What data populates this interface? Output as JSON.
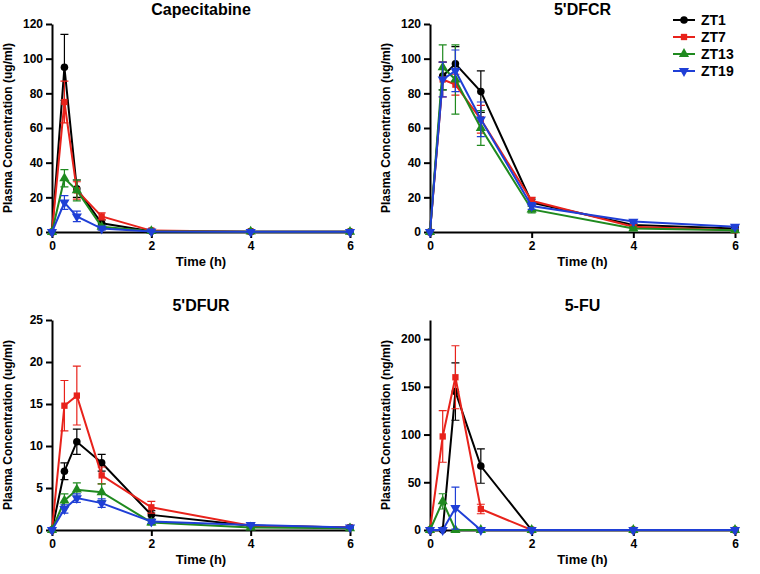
{
  "chart_data": [
    {
      "type": "line",
      "title": "Capecitabine",
      "x_label": "Time (h)",
      "y_label": "Plasma Concentration (ug/ml)",
      "x": [
        0,
        0.25,
        0.5,
        1,
        2,
        4,
        6
      ],
      "xlim": [
        0,
        6
      ],
      "xticks": [
        0,
        2,
        4,
        6
      ],
      "ylim": [
        0,
        120
      ],
      "yticks": [
        0,
        20,
        40,
        60,
        80,
        100,
        120
      ],
      "series": [
        {
          "name": "ZT1",
          "color": "#000000",
          "marker": "circle",
          "values": [
            0,
            95,
            25,
            5,
            0.5,
            0.2,
            0.1
          ],
          "errors": [
            0,
            19,
            5,
            2,
            0.3,
            0.1,
            0.1
          ]
        },
        {
          "name": "ZT7",
          "color": "#e8221b",
          "marker": "square",
          "values": [
            0,
            75,
            24,
            9,
            0.8,
            0.2,
            0.1
          ],
          "errors": [
            0,
            12,
            5,
            2,
            0.3,
            0.1,
            0.1
          ]
        },
        {
          "name": "ZT13",
          "color": "#1f8a1f",
          "marker": "triangle-up",
          "values": [
            0,
            31,
            24,
            3,
            0.5,
            0.2,
            0.1
          ],
          "errors": [
            0,
            5,
            6,
            1,
            0.2,
            0.1,
            0.1
          ]
        },
        {
          "name": "ZT19",
          "color": "#1f3fd6",
          "marker": "triangle-down",
          "values": [
            0,
            17,
            9,
            2,
            0.3,
            0.1,
            0.1
          ],
          "errors": [
            0,
            4,
            3,
            1,
            0.2,
            0.1,
            0.1
          ]
        }
      ]
    },
    {
      "type": "line",
      "title": "5'DFCR",
      "x_label": "Time (h)",
      "y_label": "Plasma Concentration (ug/ml)",
      "x": [
        0,
        0.25,
        0.5,
        1,
        2,
        4,
        6
      ],
      "xlim": [
        0,
        6
      ],
      "xticks": [
        0,
        2,
        4,
        6
      ],
      "ylim": [
        0,
        120
      ],
      "yticks": [
        0,
        20,
        40,
        60,
        80,
        100,
        120
      ],
      "legend": "upper right",
      "series": [
        {
          "name": "ZT1",
          "color": "#000000",
          "marker": "circle",
          "values": [
            0,
            90,
            97,
            81,
            17,
            4,
            2
          ],
          "errors": [
            0,
            8,
            10,
            12,
            2,
            1,
            1
          ]
        },
        {
          "name": "ZT7",
          "color": "#e8221b",
          "marker": "square",
          "values": [
            0,
            88,
            85,
            65,
            18,
            3,
            1
          ],
          "errors": [
            0,
            10,
            6,
            8,
            2,
            1,
            1
          ]
        },
        {
          "name": "ZT13",
          "color": "#1f8a1f",
          "marker": "triangle-up",
          "values": [
            0,
            95,
            88,
            60,
            13,
            2,
            1
          ],
          "errors": [
            0,
            13,
            20,
            10,
            2,
            1,
            1
          ]
        },
        {
          "name": "ZT19",
          "color": "#1f3fd6",
          "marker": "triangle-down",
          "values": [
            0,
            88,
            93,
            65,
            15,
            6,
            3
          ],
          "errors": [
            0,
            10,
            12,
            10,
            2,
            1,
            1
          ]
        }
      ]
    },
    {
      "type": "line",
      "title": "5'DFUR",
      "x_label": "Time (h)",
      "y_label": "Plasma Concentration (ug/ml)",
      "x": [
        0,
        0.25,
        0.5,
        1,
        2,
        4,
        6
      ],
      "xlim": [
        0,
        6
      ],
      "xticks": [
        0,
        2,
        4,
        6
      ],
      "ylim": [
        0,
        25
      ],
      "yticks": [
        0,
        5,
        10,
        15,
        20,
        25
      ],
      "series": [
        {
          "name": "ZT1",
          "color": "#000000",
          "marker": "circle",
          "values": [
            0,
            7,
            10.5,
            8,
            1.8,
            0.5,
            0.3
          ],
          "errors": [
            0,
            1,
            1.5,
            1,
            0.5,
            0.1,
            0.1
          ]
        },
        {
          "name": "ZT7",
          "color": "#e8221b",
          "marker": "square",
          "values": [
            0,
            14.8,
            16,
            6.5,
            2.7,
            0.5,
            0.3
          ],
          "errors": [
            0,
            3,
            3.5,
            1,
            0.7,
            0.1,
            0.1
          ]
        },
        {
          "name": "ZT13",
          "color": "#1f8a1f",
          "marker": "triangle-up",
          "values": [
            0,
            3.5,
            4.8,
            4.5,
            0.9,
            0.3,
            0.2
          ],
          "errors": [
            0,
            0.8,
            0.8,
            1,
            0.3,
            0.1,
            0.1
          ]
        },
        {
          "name": "ZT19",
          "color": "#1f3fd6",
          "marker": "triangle-down",
          "values": [
            0,
            2.5,
            3.8,
            3.2,
            1,
            0.6,
            0.3
          ],
          "errors": [
            0,
            0.5,
            0.5,
            0.5,
            0.2,
            0.1,
            0.1
          ]
        }
      ]
    },
    {
      "type": "line",
      "title": "5-FU",
      "x_label": "Time (h)",
      "y_label": "Plasma Concentration (ng/ml)",
      "x": [
        0,
        0.25,
        0.5,
        1,
        2,
        4,
        6
      ],
      "xlim": [
        0,
        6
      ],
      "xticks": [
        0,
        2,
        4,
        6
      ],
      "ylim": [
        0,
        220
      ],
      "yticks": [
        0,
        50,
        100,
        150,
        200
      ],
      "series": [
        {
          "name": "ZT1",
          "color": "#000000",
          "marker": "circle",
          "values": [
            0,
            0,
            145,
            67,
            0,
            0,
            0
          ],
          "errors": [
            0,
            0,
            30,
            18,
            0,
            0,
            0
          ]
        },
        {
          "name": "ZT7",
          "color": "#e8221b",
          "marker": "square",
          "values": [
            0,
            98,
            160,
            22,
            0,
            0,
            0
          ],
          "errors": [
            0,
            27,
            33,
            5,
            0,
            0,
            0
          ]
        },
        {
          "name": "ZT13",
          "color": "#1f8a1f",
          "marker": "triangle-up",
          "values": [
            0,
            30,
            0,
            0,
            0,
            0,
            0
          ],
          "errors": [
            0,
            8,
            0,
            0,
            0,
            0,
            0
          ]
        },
        {
          "name": "ZT19",
          "color": "#1f3fd6",
          "marker": "triangle-down",
          "values": [
            0,
            0,
            23,
            0,
            0,
            0,
            0
          ],
          "errors": [
            0,
            0,
            22,
            0,
            0,
            0,
            0
          ]
        }
      ]
    }
  ]
}
